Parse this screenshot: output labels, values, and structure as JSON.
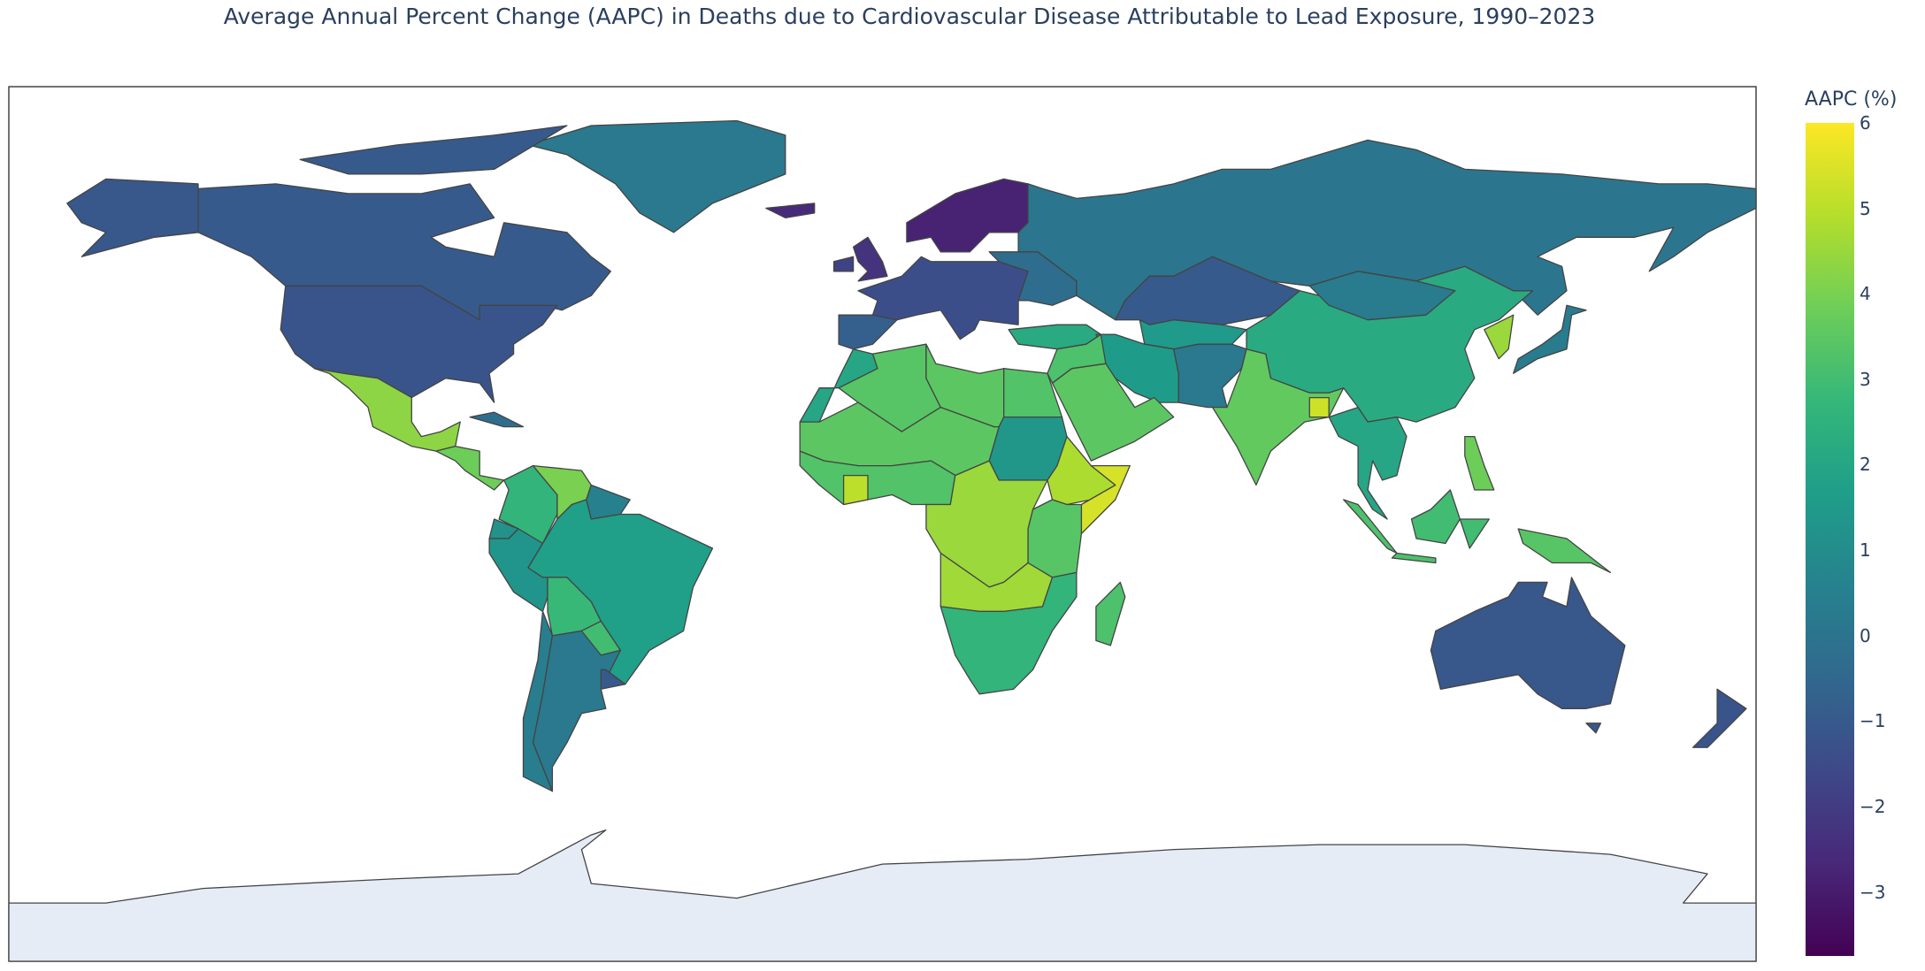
{
  "chart_data": {
    "type": "choropleth",
    "title": "Average Annual Percent Change (AAPC) in Deaths due to Cardiovascular Disease Attributable to Lead Exposure, 1990–2023",
    "projection": "equirectangular",
    "colorscale": "Viridis",
    "colorbar": {
      "title": "AAPC (%)",
      "range": [
        -3.75,
        6
      ],
      "ticks": [
        "6",
        "5",
        "4",
        "3",
        "2",
        "1",
        "0",
        "−1",
        "−2",
        "−3"
      ],
      "tick_values": [
        6,
        5,
        4,
        3,
        2,
        1,
        0,
        -1,
        -2,
        -3
      ]
    },
    "no_data_color": "#e5ecf6",
    "regions": [
      {
        "id": "GRL",
        "value": 0.2
      },
      {
        "id": "CAN",
        "value": -1.0
      },
      {
        "id": "CAN-ARCTIC",
        "value": -1.0
      },
      {
        "id": "USA-AK",
        "value": -1.1
      },
      {
        "id": "USA",
        "value": -1.2
      },
      {
        "id": "MEX",
        "value": 4.3
      },
      {
        "id": "CAM",
        "value": 3.8
      },
      {
        "id": "CUB",
        "value": -0.3
      },
      {
        "id": "COL",
        "value": 2.6
      },
      {
        "id": "VEN",
        "value": 4.0
      },
      {
        "id": "GUY",
        "value": 0.5
      },
      {
        "id": "ECU",
        "value": 1.2
      },
      {
        "id": "PER",
        "value": 1.3
      },
      {
        "id": "BRA",
        "value": 1.7
      },
      {
        "id": "BOL",
        "value": 2.8
      },
      {
        "id": "PRY",
        "value": 3.0
      },
      {
        "id": "CHL",
        "value": 0.4
      },
      {
        "id": "ARG",
        "value": 0.2
      },
      {
        "id": "URY",
        "value": -1.0
      },
      {
        "id": "NORDIC",
        "value": -2.8
      },
      {
        "id": "GBR",
        "value": -2.3
      },
      {
        "id": "IRL",
        "value": -1.8
      },
      {
        "id": "ISL",
        "value": -2.6
      },
      {
        "id": "WEUR",
        "value": -1.4
      },
      {
        "id": "IBERIA",
        "value": -0.8
      },
      {
        "id": "EEUR",
        "value": -0.3
      },
      {
        "id": "RUS",
        "value": 0.1
      },
      {
        "id": "KAZ",
        "value": -1.0
      },
      {
        "id": "CASIA",
        "value": 1.5
      },
      {
        "id": "TUR",
        "value": 2.2
      },
      {
        "id": "IRN",
        "value": 1.6
      },
      {
        "id": "ARABIA",
        "value": 3.5
      },
      {
        "id": "LEVANT",
        "value": 3.2
      },
      {
        "id": "AFPAK",
        "value": 0.2
      },
      {
        "id": "IND",
        "value": 3.6
      },
      {
        "id": "BGD",
        "value": 5.3
      },
      {
        "id": "CHN",
        "value": 2.2
      },
      {
        "id": "MNG",
        "value": 0.3
      },
      {
        "id": "SEASIA",
        "value": 2.0
      },
      {
        "id": "KOR",
        "value": 4.5
      },
      {
        "id": "JPN",
        "value": 0.3
      },
      {
        "id": "SUMATRA",
        "value": 3.2
      },
      {
        "id": "BORNEO",
        "value": 3.0
      },
      {
        "id": "JAVA",
        "value": 3.2
      },
      {
        "id": "SULAWESI",
        "value": 3.0
      },
      {
        "id": "PNG",
        "value": 3.4
      },
      {
        "id": "PHL",
        "value": 3.8
      },
      {
        "id": "AUS",
        "value": -1.1
      },
      {
        "id": "NZL",
        "value": -1.2
      },
      {
        "id": "TAS",
        "value": -1.1
      },
      {
        "id": "MAR",
        "value": 2.0
      },
      {
        "id": "DZA",
        "value": 3.4
      },
      {
        "id": "LBY",
        "value": 3.5
      },
      {
        "id": "EGY",
        "value": 3.3
      },
      {
        "id": "SDN",
        "value": 1.4
      },
      {
        "id": "SAHEL",
        "value": 3.5
      },
      {
        "id": "WAFR-COAST",
        "value": 3.3
      },
      {
        "id": "CIV",
        "value": 5.0
      },
      {
        "id": "CAFR",
        "value": 4.5
      },
      {
        "id": "ETH",
        "value": 4.8
      },
      {
        "id": "SOM",
        "value": 5.4
      },
      {
        "id": "EAFR",
        "value": 3.4
      },
      {
        "id": "SCAFR",
        "value": 4.6
      },
      {
        "id": "SAFR",
        "value": 2.6
      },
      {
        "id": "MDG",
        "value": 3.2
      }
    ]
  }
}
